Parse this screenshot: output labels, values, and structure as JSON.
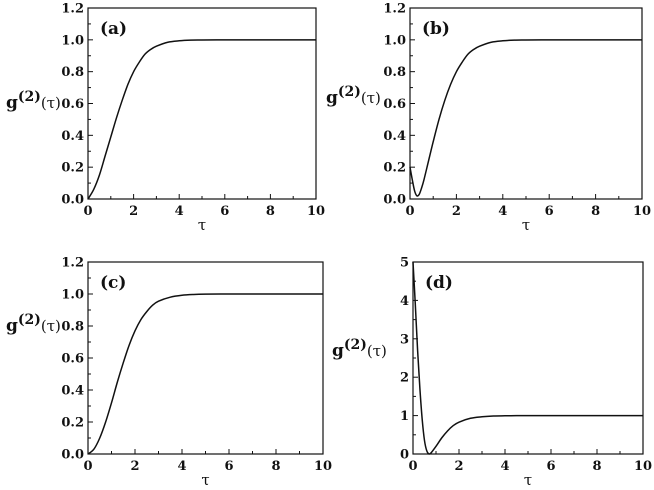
{
  "chart_data": [
    {
      "type": "line",
      "panel_label": "(a)",
      "xlabel": "τ",
      "ylabel": {
        "base": "g",
        "sup": "(2)",
        "arg": "(τ)"
      },
      "xlim": [
        0,
        10
      ],
      "ylim": [
        0,
        1.2
      ],
      "xticks": [
        0,
        2,
        4,
        6,
        8,
        10
      ],
      "yticks": [
        0.0,
        0.2,
        0.4,
        0.6,
        0.8,
        1.0,
        1.2
      ],
      "ytick_labels": [
        "0.0",
        "0.2",
        "0.4",
        "0.6",
        "0.8",
        "1.0",
        "1.2"
      ],
      "series": [
        {
          "x": [
            0,
            0.25,
            0.5,
            0.75,
            1.0,
            1.25,
            1.5,
            1.75,
            2.0,
            2.25,
            2.5,
            2.75,
            3.0,
            3.5,
            4.0,
            4.5,
            5.0,
            6.0,
            7.0,
            8.0,
            9.0,
            10.0
          ],
          "y": [
            0.0,
            0.06,
            0.15,
            0.27,
            0.39,
            0.51,
            0.62,
            0.72,
            0.8,
            0.86,
            0.91,
            0.94,
            0.96,
            0.985,
            0.994,
            0.998,
            0.999,
            1.0,
            1.0,
            1.0,
            1.0,
            1.0
          ]
        }
      ]
    },
    {
      "type": "line",
      "panel_label": "(b)",
      "xlabel": "τ",
      "ylabel": {
        "base": "g",
        "sup": "(2)",
        "arg": "(τ)"
      },
      "xlim": [
        0,
        10
      ],
      "ylim": [
        0,
        1.2
      ],
      "xticks": [
        0,
        2,
        4,
        6,
        8,
        10
      ],
      "yticks": [
        0.0,
        0.2,
        0.4,
        0.6,
        0.8,
        1.0,
        1.2
      ],
      "ytick_labels": [
        "0.0",
        "0.2",
        "0.4",
        "0.6",
        "0.8",
        "1.0",
        "1.2"
      ],
      "series": [
        {
          "x": [
            0,
            0.1,
            0.2,
            0.3,
            0.4,
            0.5,
            0.6,
            0.8,
            1.0,
            1.25,
            1.5,
            1.75,
            2.0,
            2.25,
            2.5,
            2.75,
            3.0,
            3.5,
            4.0,
            4.5,
            5.0,
            6.0,
            7.0,
            8.0,
            9.0,
            10.0
          ],
          "y": [
            0.2,
            0.12,
            0.05,
            0.02,
            0.03,
            0.07,
            0.12,
            0.24,
            0.36,
            0.5,
            0.62,
            0.72,
            0.8,
            0.86,
            0.91,
            0.94,
            0.96,
            0.985,
            0.994,
            0.998,
            0.999,
            1.0,
            1.0,
            1.0,
            1.0,
            1.0
          ]
        }
      ]
    },
    {
      "type": "line",
      "panel_label": "(c)",
      "xlabel": "τ",
      "ylabel": {
        "base": "g",
        "sup": "(2)",
        "arg": "(τ)"
      },
      "xlim": [
        0,
        10
      ],
      "ylim": [
        0,
        1.2
      ],
      "xticks": [
        0,
        2,
        4,
        6,
        8,
        10
      ],
      "yticks": [
        0.0,
        0.2,
        0.4,
        0.6,
        0.8,
        1.0,
        1.2
      ],
      "ytick_labels": [
        "0.0",
        "0.2",
        "0.4",
        "0.6",
        "0.8",
        "1.0",
        "1.2"
      ],
      "series": [
        {
          "x": [
            0,
            0.25,
            0.5,
            0.75,
            1.0,
            1.25,
            1.5,
            1.75,
            2.0,
            2.25,
            2.5,
            2.75,
            3.0,
            3.5,
            4.0,
            4.5,
            5.0,
            6.0,
            7.0,
            8.0,
            9.0,
            10.0
          ],
          "y": [
            0.0,
            0.03,
            0.1,
            0.2,
            0.32,
            0.45,
            0.57,
            0.68,
            0.77,
            0.84,
            0.89,
            0.93,
            0.955,
            0.98,
            0.992,
            0.997,
            0.999,
            1.0,
            1.0,
            1.0,
            1.0,
            1.0
          ]
        }
      ]
    },
    {
      "type": "line",
      "panel_label": "(d)",
      "xlabel": "τ",
      "ylabel": {
        "base": "g",
        "sup": "(2)",
        "arg": "(τ)"
      },
      "xlim": [
        0,
        10
      ],
      "ylim": [
        0,
        5
      ],
      "xticks": [
        0,
        2,
        4,
        6,
        8,
        10
      ],
      "yticks": [
        0,
        1,
        2,
        3,
        4,
        5
      ],
      "ytick_labels": [
        "0",
        "1",
        "2",
        "3",
        "4",
        "5"
      ],
      "series": [
        {
          "x": [
            0,
            0.1,
            0.2,
            0.3,
            0.4,
            0.5,
            0.6,
            0.7,
            0.8,
            1.0,
            1.25,
            1.5,
            1.75,
            2.0,
            2.5,
            3.0,
            3.5,
            4.0,
            4.5,
            5.0,
            6.0,
            7.0,
            8.0,
            9.0,
            10.0
          ],
          "y": [
            5.0,
            3.9,
            2.7,
            1.7,
            0.9,
            0.35,
            0.08,
            0.0,
            0.04,
            0.2,
            0.42,
            0.6,
            0.74,
            0.83,
            0.93,
            0.97,
            0.99,
            0.995,
            0.998,
            1.0,
            1.0,
            1.0,
            1.0,
            1.0,
            1.0
          ]
        }
      ]
    }
  ]
}
